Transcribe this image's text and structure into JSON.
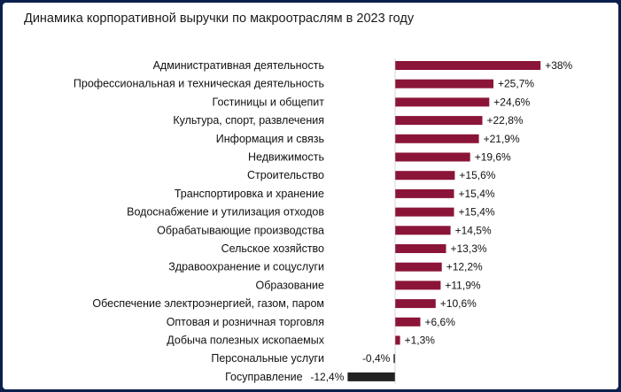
{
  "chart_data": {
    "type": "bar",
    "orientation": "horizontal",
    "title": "Динамика корпоративной выручки по макроотраслям в 2023 году",
    "categories": [
      "Административная деятельность",
      "Профессиональная и техническая деятельность",
      "Гостиницы и общепит",
      "Культура, спорт, развлечения",
      "Информация и связь",
      "Недвижимость",
      "Строительство",
      "Транспортировка и хранение",
      "Водоснабжение и утилизация отходов",
      "Обрабатывающие производства",
      "Сельское хозяйство",
      "Здравоохранение и соцуслуги",
      "Образование",
      "Обеспечение электроэнергией, газом, паром",
      "Оптовая и розничная торговля",
      "Добыча полезных ископаемых",
      "Персональные услуги",
      "Госуправление"
    ],
    "values": [
      38,
      25.7,
      24.6,
      22.8,
      21.9,
      19.6,
      15.6,
      15.4,
      15.4,
      14.5,
      13.3,
      12.2,
      11.9,
      10.6,
      6.6,
      1.3,
      -0.4,
      -12.4
    ],
    "labels": [
      "+38%",
      "+25,7%",
      "+24,6%",
      "+22,8%",
      "+21,9%",
      "+19,6%",
      "+15,6%",
      "+15,4%",
      "+15,4%",
      "+14,5%",
      "+13,3%",
      "+12,2%",
      "+11,9%",
      "+10,6%",
      "+6,6%",
      "+1,3%",
      "-0,4%",
      "-12,4%"
    ],
    "colors": {
      "positive": "#8b1538",
      "negative": "#222222"
    },
    "grid": false,
    "legend": "none"
  }
}
